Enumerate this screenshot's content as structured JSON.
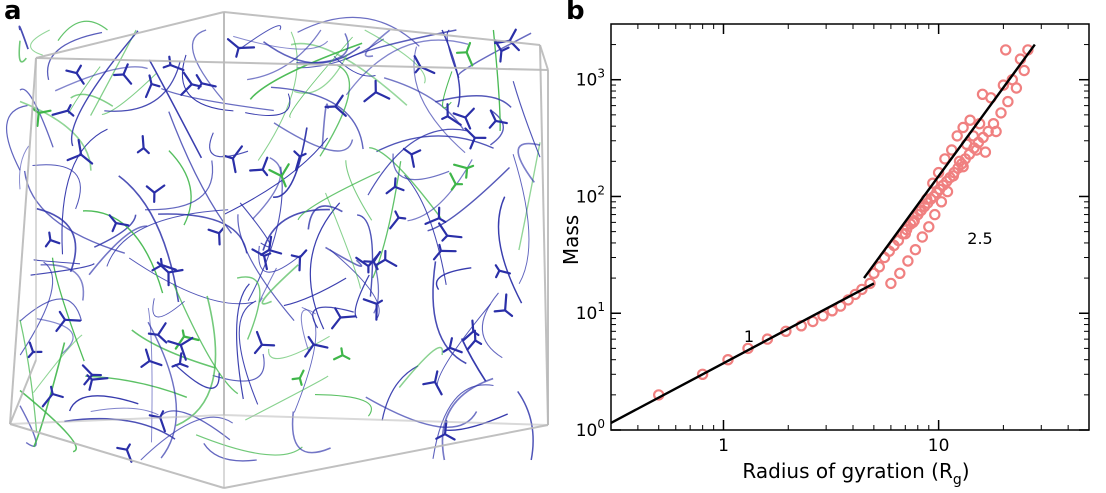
{
  "panels": {
    "a": {
      "label": "a"
    },
    "b": {
      "label": "b"
    }
  },
  "colors": {
    "network_blue": "#2a2fa8",
    "network_green": "#3fb64a",
    "box_edge": "#b9b9b9",
    "marker": "#f08080",
    "fit_line": "#000000"
  },
  "network_image": {
    "description": "3D rendering of a filament network inside a wireframe cube",
    "colors": [
      "blue",
      "green"
    ]
  },
  "chart_data": {
    "type": "scatter",
    "xlabel": "Radius of gyration (R",
    "xlabel_sub": "g",
    "xlabel_close": ")",
    "ylabel": "Mass",
    "xscale": "log",
    "yscale": "log",
    "xlim": [
      0.3,
      50
    ],
    "ylim": [
      1,
      3000
    ],
    "x_ticks": [
      {
        "value": 1,
        "label": "1"
      },
      {
        "value": 10,
        "label": "10"
      }
    ],
    "y_ticks": [
      {
        "value": 1,
        "base": "10",
        "exp": "0"
      },
      {
        "value": 10,
        "base": "10",
        "exp": "1"
      },
      {
        "value": 100,
        "base": "10",
        "exp": "2"
      },
      {
        "value": 1000,
        "base": "10",
        "exp": "3"
      }
    ],
    "series": [
      {
        "marker": "open-circle",
        "x": [
          0.5,
          0.8,
          1.05,
          1.3,
          1.6,
          1.95,
          2.3,
          2.6,
          2.9,
          3.2,
          3.5,
          3.8,
          4.1,
          4.4,
          4.8,
          5.0,
          5.3,
          5.6,
          5.9,
          6.2,
          6.5,
          6.8,
          7.1,
          7.4,
          7.7,
          8.0,
          8.3,
          8.6,
          8.9,
          9.2,
          9.5,
          9.8,
          10.1,
          10.5,
          10.9,
          11.3,
          11.8,
          12.3,
          12.8,
          13.3,
          13.9,
          14.6,
          15.3,
          16.1,
          17.0,
          18.0,
          19.5,
          21.0,
          23.0,
          25.0,
          6.0,
          6.6,
          7.2,
          7.8,
          8.4,
          9.0,
          9.6,
          10.3,
          11.0,
          11.7,
          12.5,
          13.5,
          14.5,
          15.5,
          17.5,
          20.0,
          7.0,
          7.6,
          8.2,
          8.8,
          9.4,
          10.0,
          10.7,
          11.5,
          12.2,
          13.0,
          14.0,
          15.0,
          16.5,
          18.5,
          22.0,
          24.0,
          26.0,
          20.5,
          16.0,
          13.0
        ],
        "y": [
          2,
          3,
          4,
          5,
          6,
          7,
          7.8,
          8.5,
          9.5,
          10.5,
          11.5,
          13,
          14.5,
          16,
          18,
          22,
          25,
          30,
          34,
          38,
          42,
          48,
          52,
          58,
          62,
          70,
          76,
          82,
          88,
          95,
          100,
          108,
          115,
          125,
          135,
          145,
          160,
          175,
          190,
          210,
          230,
          260,
          290,
          320,
          360,
          420,
          520,
          650,
          850,
          1200,
          18,
          22,
          28,
          35,
          45,
          55,
          70,
          90,
          110,
          150,
          200,
          280,
          330,
          420,
          700,
          900,
          48,
          60,
          75,
          95,
          130,
          160,
          210,
          250,
          330,
          390,
          450,
          250,
          240,
          360,
          1000,
          1500,
          1800,
          1800,
          750,
          180
        ]
      }
    ],
    "fit_lines": [
      {
        "slope_label": "1",
        "x": [
          0.3,
          5.0
        ],
        "y": [
          1.15,
          18
        ]
      },
      {
        "slope_label": "2.5",
        "x": [
          4.5,
          28
        ],
        "y": [
          20,
          2000
        ]
      }
    ]
  }
}
